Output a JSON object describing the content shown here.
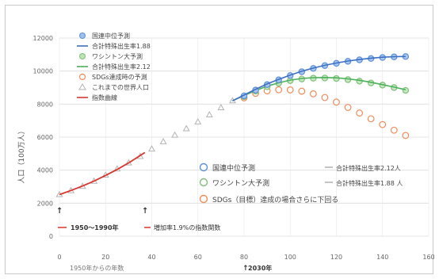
{
  "chart_data": {
    "type": "scatter",
    "ylabel": "人口（100万人）",
    "xlabel": "1950年からの年数",
    "xlim": [
      0,
      160
    ],
    "ylim": [
      0,
      12000
    ],
    "x_ticks": [
      "0",
      "20",
      "40",
      "60",
      "80",
      "100",
      "120",
      "140",
      "160"
    ],
    "y_ticks": [
      "0",
      "2000",
      "4000",
      "6000",
      "8000",
      "10000",
      "12000"
    ],
    "grid": true,
    "legend_position": "top-left",
    "legend": [
      "国連中位予測",
      "合計特殊出生率1.88",
      "ワシントン大予測",
      "合計特殊出生率2.12",
      "SDGs達成時の予測",
      "これまでの世界人口",
      "指数曲線"
    ],
    "annotations": {
      "box": [
        "国連中位予測",
        "ワシントン大予測",
        "SDGs（目標）達成の場合さらに下回る",
        "合計特殊出生率2.12人",
        "合計特殊出生率1.88 人"
      ],
      "period": "1950～1990年",
      "growth_note": "増加率1.9%の指数関数",
      "year_2030": "2030年"
    },
    "colors": {
      "un": "#5b8fd6",
      "washington": "#7fbf7a",
      "sdgs": "#ef8c5a",
      "historical": "#b3b3b3",
      "exponential": "#d9362b",
      "fert188": "#3c6fc4",
      "fert212": "#4cb15b"
    },
    "series": [
      {
        "name": "国連中位予測",
        "marker": "circle",
        "x": [
          80,
          85,
          90,
          95,
          100,
          105,
          110,
          115,
          120,
          125,
          130,
          135,
          140,
          145,
          150
        ],
        "y": [
          8500,
          8850,
          9180,
          9470,
          9730,
          9960,
          10160,
          10330,
          10470,
          10590,
          10680,
          10760,
          10820,
          10860,
          10880
        ]
      },
      {
        "name": "合計特殊出生率1.88",
        "marker": "line",
        "x": [
          75,
          80,
          85,
          90,
          95,
          100,
          105,
          110,
          115,
          120,
          125,
          130,
          135,
          140,
          145,
          150
        ],
        "y": [
          8200,
          8550,
          8900,
          9220,
          9500,
          9760,
          9990,
          10180,
          10350,
          10490,
          10610,
          10700,
          10780,
          10840,
          10870,
          10880
        ]
      },
      {
        "name": "ワシントン大予測",
        "marker": "circle",
        "x": [
          80,
          85,
          90,
          95,
          100,
          105,
          110,
          115,
          120,
          125,
          130,
          135,
          140,
          145,
          150
        ],
        "y": [
          8450,
          8780,
          9050,
          9270,
          9420,
          9520,
          9570,
          9580,
          9550,
          9480,
          9390,
          9280,
          9150,
          9000,
          8830
        ]
      },
      {
        "name": "合計特殊出生率2.12",
        "marker": "line",
        "x": [
          75,
          80,
          85,
          90,
          95,
          100,
          105,
          110,
          115,
          120,
          125,
          130,
          135,
          140,
          145,
          150
        ],
        "y": [
          8200,
          8520,
          8820,
          9080,
          9290,
          9450,
          9550,
          9600,
          9610,
          9590,
          9530,
          9440,
          9320,
          9180,
          9030,
          8870
        ]
      },
      {
        "name": "SDGs達成時の予測",
        "marker": "circle",
        "x": [
          80,
          85,
          90,
          95,
          100,
          105,
          110,
          115,
          120,
          125,
          130,
          135,
          140,
          145,
          150
        ],
        "y": [
          8380,
          8650,
          8800,
          8870,
          8860,
          8780,
          8620,
          8400,
          8120,
          7800,
          7460,
          7110,
          6760,
          6420,
          6100
        ]
      },
      {
        "name": "これまでの世界人口",
        "marker": "triangle",
        "x": [
          0,
          5,
          10,
          15,
          20,
          25,
          30,
          35,
          40,
          45,
          50,
          55,
          60,
          65,
          70,
          75
        ],
        "y": [
          2520,
          2760,
          3020,
          3330,
          3700,
          4070,
          4440,
          4830,
          5280,
          5720,
          6120,
          6510,
          6920,
          7350,
          7780,
          8200
        ]
      },
      {
        "name": "指数曲線",
        "marker": "line",
        "x": [
          0,
          5,
          10,
          15,
          20,
          25,
          30,
          35,
          37
        ],
        "y": [
          2520,
          2770,
          3040,
          3340,
          3680,
          4040,
          4440,
          4880,
          5070
        ]
      }
    ]
  }
}
